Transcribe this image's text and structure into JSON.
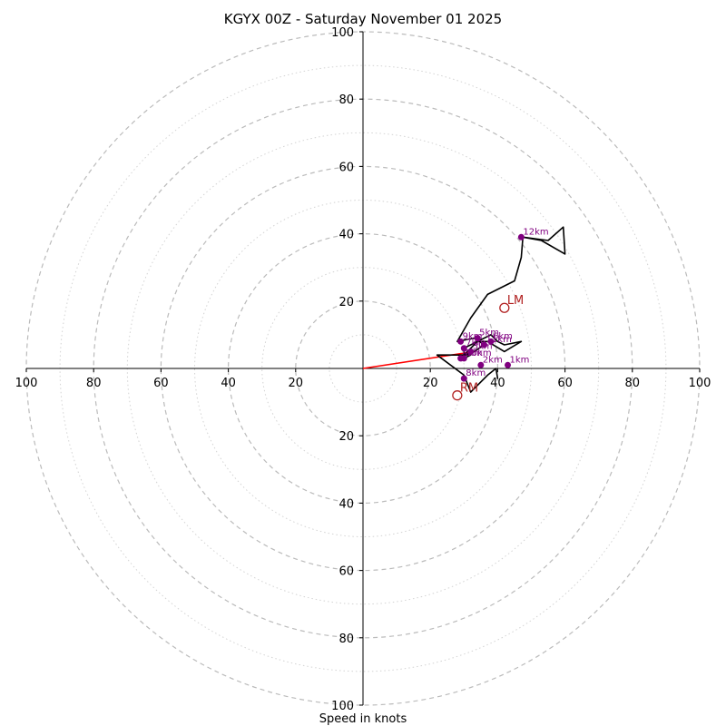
{
  "chart_data": {
    "type": "hodograph",
    "title": "KGYX 00Z - Saturday November 01 2025",
    "xlabel": "Speed in knots",
    "max_speed": 100,
    "ring_step": 10,
    "axis_tick_values": [
      20,
      40,
      60,
      80,
      100
    ],
    "axis_tick_labels": [
      "20",
      "40",
      "60",
      "80",
      "100"
    ],
    "colors": {
      "trace": "#000000",
      "height_marker": "#800080",
      "motion_marker": "#b22222",
      "mean_wind_vector": "#ff0000",
      "major_ring": "#bbbbbb",
      "minor_ring": "#d3d3d3",
      "axis": "#000000"
    },
    "trace": [
      [
        40,
        -3
      ],
      [
        39.5,
        0
      ],
      [
        37,
        -2
      ],
      [
        32,
        -7
      ],
      [
        30,
        -2
      ],
      [
        22,
        4
      ],
      [
        32,
        4
      ],
      [
        30,
        3
      ],
      [
        30,
        6
      ],
      [
        38,
        10
      ],
      [
        40,
        8
      ],
      [
        42,
        7
      ],
      [
        47,
        8
      ],
      [
        42,
        5
      ],
      [
        37,
        8
      ],
      [
        34,
        8
      ],
      [
        30,
        4
      ],
      [
        33,
        5
      ],
      [
        36,
        7
      ],
      [
        33,
        9
      ],
      [
        28,
        8
      ],
      [
        32,
        15
      ],
      [
        37,
        22
      ],
      [
        45,
        26
      ],
      [
        47,
        33
      ],
      [
        47.5,
        39
      ],
      [
        53,
        38
      ],
      [
        60,
        34
      ],
      [
        59.5,
        42
      ],
      [
        55,
        38
      ],
      [
        47.5,
        39
      ]
    ],
    "height_markers": [
      {
        "label": "1km",
        "u": 43,
        "v": 1
      },
      {
        "label": "2km",
        "u": 35,
        "v": 1
      },
      {
        "label": "3km",
        "u": 32,
        "v": 5
      },
      {
        "label": "4km",
        "u": 29,
        "v": 3
      },
      {
        "label": "5km",
        "u": 34,
        "v": 9
      },
      {
        "label": "6km",
        "u": 38,
        "v": 8
      },
      {
        "label": "7km",
        "u": 30,
        "v": 6
      },
      {
        "label": "8km",
        "u": 30,
        "v": -3
      },
      {
        "label": "9km",
        "u": 29,
        "v": 8
      },
      {
        "label": "10km",
        "u": 30,
        "v": 3
      },
      {
        "label": "11km",
        "u": 36,
        "v": 7
      },
      {
        "label": "12km",
        "u": 47,
        "v": 39
      }
    ],
    "storm_motions": [
      {
        "label": "LM",
        "u": 42,
        "v": 18
      },
      {
        "label": "RM",
        "u": 28,
        "v": -8
      }
    ],
    "mean_wind_vector": {
      "u": 33,
      "v": 5
    }
  }
}
